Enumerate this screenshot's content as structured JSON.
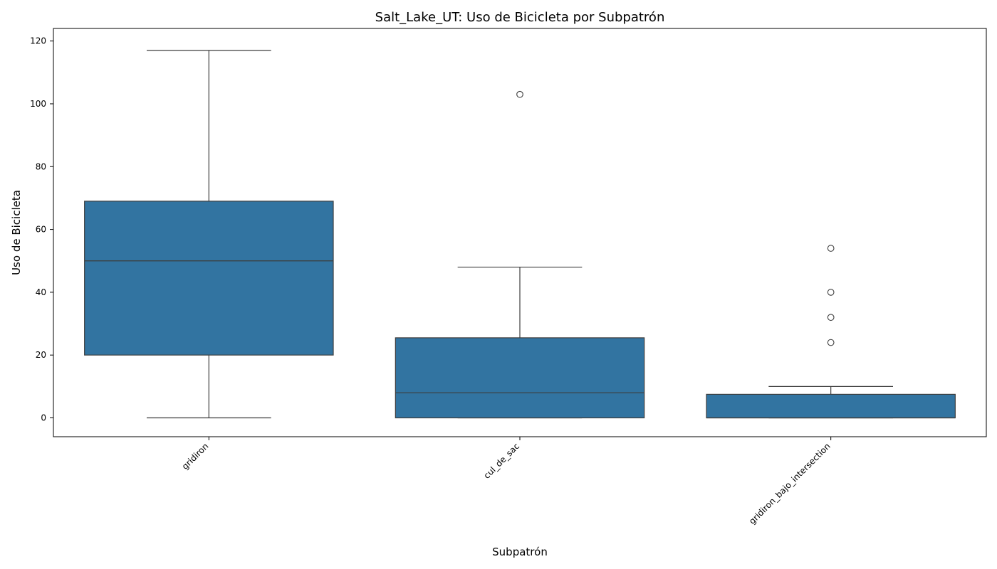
{
  "chart_data": {
    "type": "box",
    "title": "Salt_Lake_UT: Uso de Bicicleta por Subpatrón",
    "xlabel": "Subpatrón",
    "ylabel": "Uso de Bicicleta",
    "ylim": [
      -6,
      124
    ],
    "yticks": [
      0,
      20,
      40,
      60,
      80,
      100,
      120
    ],
    "grid": false,
    "legend": false,
    "box_color": "#3274a1",
    "line_color": "#3d3d3d",
    "categories": [
      "gridiron",
      "cul_de_sac",
      "gridiron_bajo_intersection"
    ],
    "boxes": [
      {
        "category": "gridiron",
        "whisker_low": 0,
        "q1": 20,
        "median": 50,
        "q3": 69,
        "whisker_high": 117,
        "outliers": []
      },
      {
        "category": "cul_de_sac",
        "whisker_low": 0,
        "q1": 0,
        "median": 8,
        "q3": 25.5,
        "whisker_high": 48,
        "outliers": [
          103
        ]
      },
      {
        "category": "gridiron_bajo_intersection",
        "whisker_low": 0,
        "q1": 0,
        "median": 0,
        "q3": 7.5,
        "whisker_high": 10,
        "outliers": [
          24,
          32,
          40,
          54
        ]
      }
    ]
  }
}
